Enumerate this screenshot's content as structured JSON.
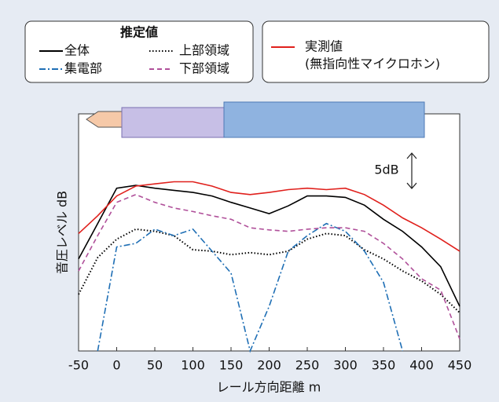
{
  "chart_data": {
    "type": "line",
    "x_label": "レール方向距離 m",
    "y_label": "音圧レベル dB",
    "legend_title": "推定値",
    "legend_note": "(無指向性マイクロホン)",
    "scale_bar": {
      "value": 5,
      "label": "5dB"
    },
    "x": [
      -50,
      -25,
      0,
      25,
      50,
      75,
      100,
      125,
      150,
      175,
      200,
      225,
      250,
      275,
      300,
      325,
      350,
      375,
      400,
      425,
      450
    ],
    "xlim": [
      -50,
      450
    ],
    "xticks": [
      -50,
      0,
      50,
      100,
      150,
      200,
      250,
      300,
      350,
      400,
      450
    ],
    "ylim": [
      0,
      33.5
    ],
    "series": [
      {
        "name": "全体",
        "color": "#000000",
        "dash": "solid",
        "values": [
          13,
          18,
          23,
          23.4,
          23,
          22.7,
          22.4,
          21.9,
          21,
          20.2,
          19.4,
          20.5,
          21.9,
          21.9,
          21.7,
          20.6,
          18.6,
          16.9,
          14.7,
          11.9,
          6.3
        ]
      },
      {
        "name": "上部領域",
        "color": "#000000",
        "dash": "dotted",
        "values": [
          8,
          13.2,
          15.8,
          17.2,
          16.9,
          16.3,
          14.3,
          14.1,
          13.6,
          13.9,
          13.6,
          14.1,
          15.8,
          16.6,
          16.3,
          14.3,
          13,
          11.3,
          9.9,
          8,
          5.4
        ]
      },
      {
        "name": "集電部",
        "color": "#1f6fb5",
        "dash": "dashdot",
        "values": [
          null,
          0,
          14.7,
          15.2,
          17.2,
          16.3,
          17.2,
          14.1,
          11,
          0,
          6.3,
          14.1,
          16.3,
          18,
          16.9,
          14.1,
          9.7,
          0,
          null,
          null,
          null
        ]
      },
      {
        "name": "下部領域",
        "color": "#b0509a",
        "dash": "dashed",
        "values": [
          11.3,
          16.3,
          21,
          22.1,
          21,
          20.2,
          19.7,
          19.1,
          18.6,
          17.4,
          17.1,
          16.9,
          17.2,
          17.4,
          17.4,
          16.9,
          15.2,
          13,
          10.2,
          8.6,
          1.7
        ]
      },
      {
        "name": "実測値",
        "color": "#e0201c",
        "dash": "solid",
        "values": [
          16.6,
          19.1,
          21.9,
          23.3,
          23.6,
          23.9,
          23.9,
          23.3,
          22.4,
          22.1,
          22.4,
          22.8,
          23,
          22.8,
          23,
          22.1,
          20.6,
          18.8,
          17.4,
          15.8,
          14.1
        ]
      }
    ]
  }
}
